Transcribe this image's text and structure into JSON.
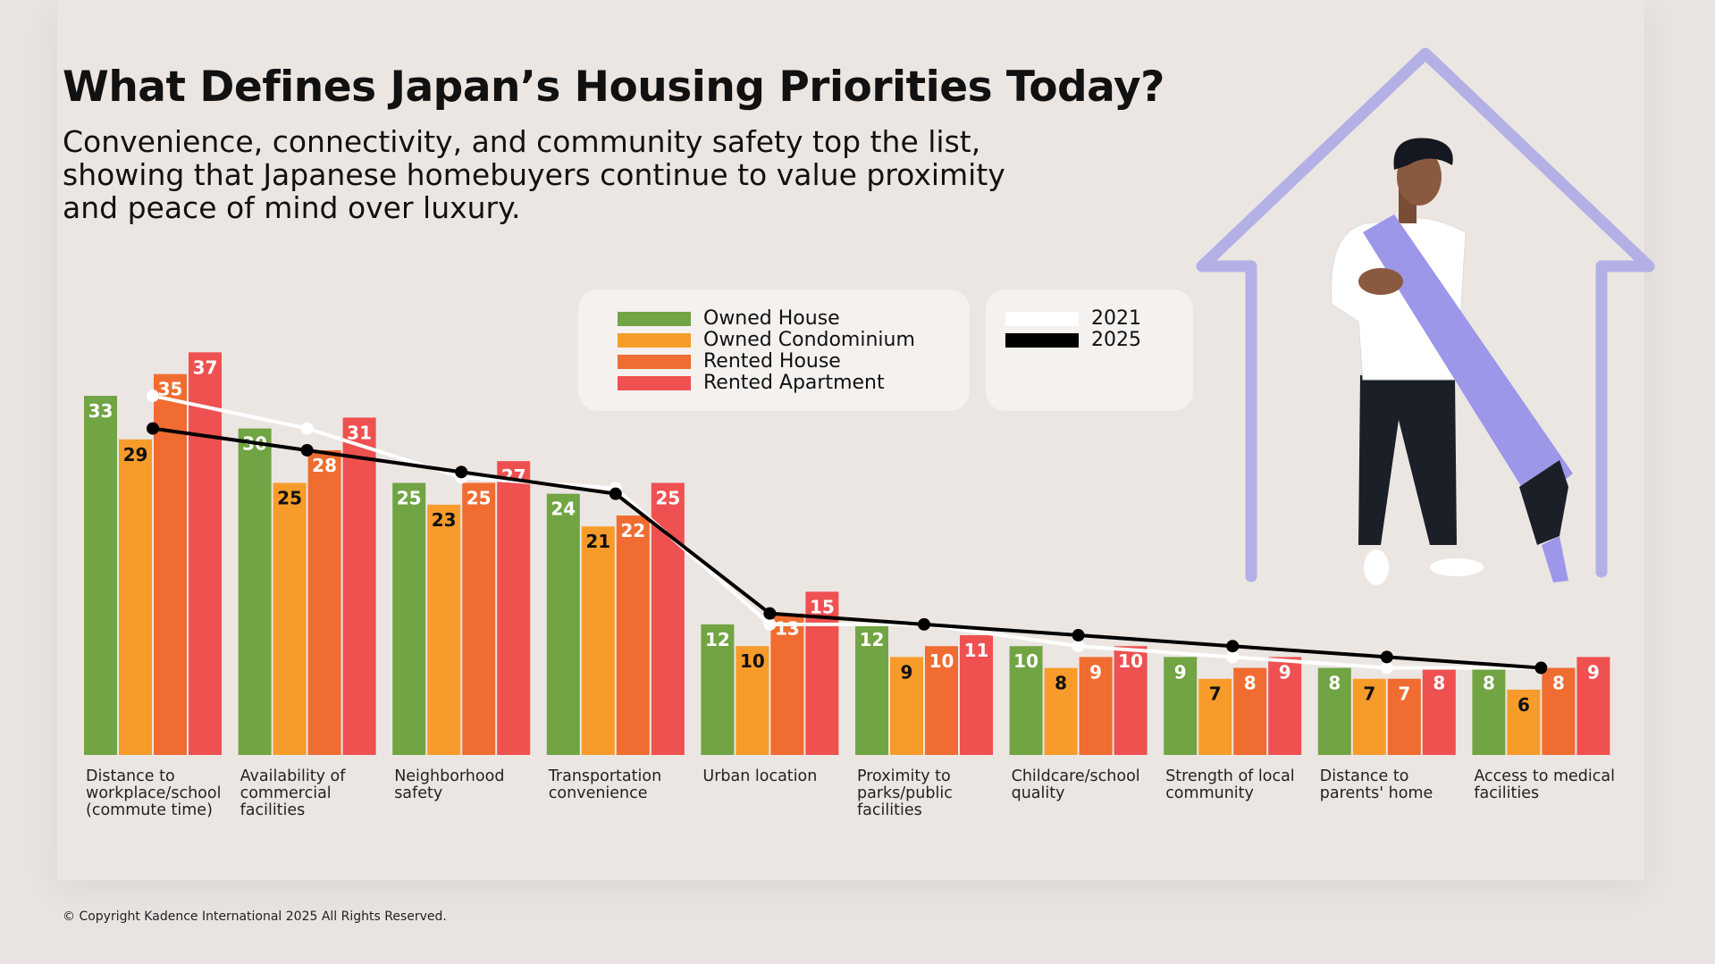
{
  "title": "What Defines Japan’s Housing Priorities Today?",
  "subtitle": "Convenience, connectivity, and community safety top the list, showing that Japanese homebuyers continue to value proximity and peace of mind over luxury.",
  "copyright": "© Copyright Kadence International 2025 All Rights Reserved.",
  "chart_data": {
    "type": "bar",
    "categories": [
      "Distance to workplace/school (commute time)",
      "Availability of commercial facilities",
      "Neighborhood safety",
      "Transportation convenience",
      "Urban location",
      "Proximity to parks/public facilities",
      "Childcare/school quality",
      "Strength of local community",
      "Distance to parents' home",
      "Access to medical facilities"
    ],
    "series": [
      {
        "name": "Owned House",
        "color": "#71a443",
        "label_color": "#ffffff",
        "values": [
          33,
          30,
          25,
          24,
          12,
          12,
          10,
          9,
          8,
          8
        ]
      },
      {
        "name": "Owned Condominium",
        "color": "#f79c2a",
        "label_color": "#111111",
        "values": [
          29,
          25,
          23,
          21,
          10,
          9,
          8,
          7,
          7,
          6
        ]
      },
      {
        "name": "Rented House",
        "color": "#f06c30",
        "label_color": "#ffffff",
        "values": [
          35,
          28,
          25,
          22,
          13,
          10,
          9,
          8,
          7,
          8
        ]
      },
      {
        "name": "Rented Apartment",
        "color": "#ef5050",
        "label_color": "#ffffff",
        "values": [
          37,
          31,
          27,
          25,
          15,
          11,
          10,
          9,
          8,
          9
        ]
      }
    ],
    "lines": [
      {
        "name": "2021",
        "color": "#ffffff",
        "values": [
          33,
          30,
          25.5,
          24.5,
          12,
          12,
          10,
          9,
          8,
          8
        ]
      },
      {
        "name": "2025",
        "color": "#000000",
        "values": [
          30,
          28,
          26,
          24,
          13,
          12,
          11,
          10,
          9,
          8
        ]
      }
    ],
    "ylim": [
      0,
      37
    ],
    "grid": false,
    "legend_placement": "top-center"
  }
}
